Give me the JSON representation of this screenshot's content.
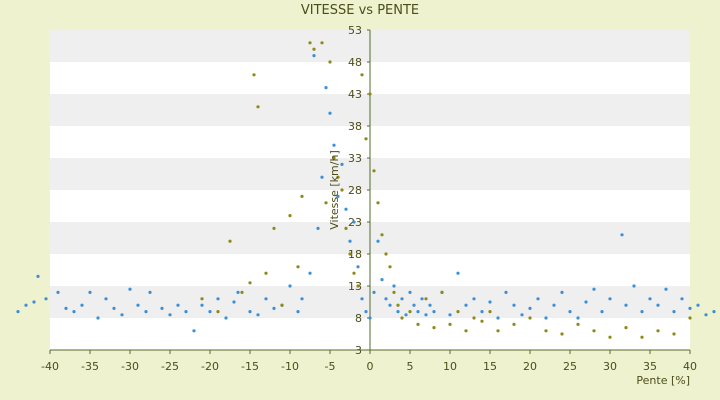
{
  "chart_data": {
    "type": "scatter",
    "title": "VITESSE vs PENTE",
    "xlabel": "Pente [%]",
    "ylabel": "Vitesse [km/h]",
    "xlim": [
      -40,
      40
    ],
    "ylim": [
      3,
      53
    ],
    "xticks": [
      -40,
      -35,
      -30,
      -25,
      -20,
      -15,
      -10,
      -5,
      0,
      5,
      10,
      15,
      20,
      25,
      30,
      35,
      40
    ],
    "yticks": [
      3,
      8,
      13,
      18,
      23,
      28,
      33,
      38,
      43,
      48,
      53
    ],
    "grid": "horizontal alternating bands",
    "legend": "none",
    "colors": {
      "series_blue": "#3d8fd6",
      "series_olive": "#8e8a1a",
      "band_light": "#ffffff",
      "band_dark": "#efefef",
      "axis": "#556b2f",
      "text": "#4d4d1a"
    },
    "series": [
      {
        "color": "#3d8fd6",
        "points": [
          [
            -44,
            9
          ],
          [
            -43,
            10
          ],
          [
            -42,
            10.5
          ],
          [
            -41.5,
            14.5
          ],
          [
            -40.5,
            11
          ],
          [
            -39,
            12
          ],
          [
            -38,
            9.5
          ],
          [
            -37,
            9
          ],
          [
            -36,
            10
          ],
          [
            -35,
            12
          ],
          [
            -34,
            8
          ],
          [
            -33,
            11
          ],
          [
            -32,
            9.5
          ],
          [
            -31,
            8.5
          ],
          [
            -30,
            12.5
          ],
          [
            -29,
            10
          ],
          [
            -28,
            9
          ],
          [
            -27.5,
            12
          ],
          [
            -26,
            9.5
          ],
          [
            -25,
            8.5
          ],
          [
            -24,
            10
          ],
          [
            -23,
            9
          ],
          [
            -22,
            6
          ],
          [
            -21,
            10
          ],
          [
            -20,
            9
          ],
          [
            -19,
            11
          ],
          [
            -18,
            8
          ],
          [
            -17,
            10.5
          ],
          [
            -16.5,
            12
          ],
          [
            -15,
            9
          ],
          [
            -14,
            8.5
          ],
          [
            -13,
            11
          ],
          [
            -12,
            9.5
          ],
          [
            -11,
            10
          ],
          [
            -10,
            13
          ],
          [
            -9,
            9
          ],
          [
            -8.5,
            11
          ],
          [
            -7.5,
            15
          ],
          [
            -7,
            49
          ],
          [
            -6.5,
            22
          ],
          [
            -6,
            30
          ],
          [
            -5.5,
            44
          ],
          [
            -5,
            40
          ],
          [
            -4.5,
            35
          ],
          [
            -4,
            27
          ],
          [
            -3.5,
            32
          ],
          [
            -3,
            25
          ],
          [
            -2.5,
            20
          ],
          [
            -2,
            23
          ],
          [
            -1.5,
            16
          ],
          [
            -1,
            11
          ],
          [
            -0.5,
            9
          ],
          [
            0,
            8
          ],
          [
            0.5,
            12
          ],
          [
            1,
            20
          ],
          [
            1.5,
            14
          ],
          [
            2,
            11
          ],
          [
            2.5,
            10
          ],
          [
            3,
            13
          ],
          [
            3.5,
            9
          ],
          [
            4,
            11
          ],
          [
            4.5,
            8.5
          ],
          [
            5,
            12
          ],
          [
            5.5,
            10
          ],
          [
            6,
            9
          ],
          [
            6.5,
            11
          ],
          [
            7,
            8.5
          ],
          [
            7.5,
            10
          ],
          [
            8,
            9
          ],
          [
            9,
            12
          ],
          [
            10,
            8.5
          ],
          [
            11,
            15
          ],
          [
            12,
            10
          ],
          [
            13,
            11
          ],
          [
            14,
            9
          ],
          [
            15,
            10.5
          ],
          [
            16,
            8
          ],
          [
            17,
            12
          ],
          [
            18,
            10
          ],
          [
            19,
            8.5
          ],
          [
            20,
            9.5
          ],
          [
            21,
            11
          ],
          [
            22,
            8
          ],
          [
            23,
            10
          ],
          [
            24,
            12
          ],
          [
            25,
            9
          ],
          [
            26,
            8
          ],
          [
            27,
            10.5
          ],
          [
            28,
            12.5
          ],
          [
            29,
            9
          ],
          [
            30,
            11
          ],
          [
            31.5,
            21
          ],
          [
            32,
            10
          ],
          [
            33,
            13
          ],
          [
            34,
            9
          ],
          [
            35,
            11
          ],
          [
            36,
            10
          ],
          [
            37,
            12.5
          ],
          [
            38,
            9
          ],
          [
            39,
            11
          ],
          [
            40,
            9.5
          ],
          [
            41,
            10
          ],
          [
            42,
            8.5
          ],
          [
            43,
            9
          ]
        ]
      },
      {
        "color": "#8e8a1a",
        "points": [
          [
            -21,
            11
          ],
          [
            -19,
            9
          ],
          [
            -17.5,
            20
          ],
          [
            -16,
            12
          ],
          [
            -15,
            13.5
          ],
          [
            -14.5,
            46
          ],
          [
            -14,
            41
          ],
          [
            -13,
            15
          ],
          [
            -12,
            22
          ],
          [
            -11,
            10
          ],
          [
            -10,
            24
          ],
          [
            -9,
            16
          ],
          [
            -8.5,
            27
          ],
          [
            -7.5,
            51
          ],
          [
            -7,
            50
          ],
          [
            -6,
            51
          ],
          [
            -5.5,
            26
          ],
          [
            -5,
            48
          ],
          [
            -4.5,
            33
          ],
          [
            -4,
            30
          ],
          [
            -3.5,
            28
          ],
          [
            -3,
            22
          ],
          [
            -2.5,
            18
          ],
          [
            -2,
            15
          ],
          [
            -1.5,
            13
          ],
          [
            -1,
            46
          ],
          [
            -0.5,
            36
          ],
          [
            0,
            43
          ],
          [
            0.5,
            31
          ],
          [
            1,
            26
          ],
          [
            1.5,
            21
          ],
          [
            2,
            18
          ],
          [
            2.5,
            16
          ],
          [
            3,
            12
          ],
          [
            3.5,
            10
          ],
          [
            4,
            8
          ],
          [
            5,
            9
          ],
          [
            6,
            7
          ],
          [
            7,
            11
          ],
          [
            8,
            6.5
          ],
          [
            9,
            12
          ],
          [
            10,
            7
          ],
          [
            11,
            9
          ],
          [
            12,
            6
          ],
          [
            13,
            8
          ],
          [
            14,
            7.5
          ],
          [
            15,
            9
          ],
          [
            16,
            6
          ],
          [
            18,
            7
          ],
          [
            20,
            8
          ],
          [
            22,
            6
          ],
          [
            24,
            5.5
          ],
          [
            26,
            7
          ],
          [
            28,
            6
          ],
          [
            30,
            5
          ],
          [
            32,
            6.5
          ],
          [
            34,
            5
          ],
          [
            36,
            6
          ],
          [
            38,
            5.5
          ],
          [
            40,
            8
          ]
        ]
      }
    ]
  }
}
